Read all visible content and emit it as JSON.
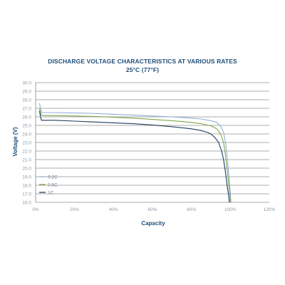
{
  "chart_data": {
    "type": "line",
    "title": "DISCHARGE VOLTAGE CHARACTERISTICS AT VARIOUS RATES",
    "subtitle": "25°C (77°F)",
    "xlabel": "Capacity",
    "ylabel": "Voltage (V)",
    "xlim": [
      0,
      120
    ],
    "ylim": [
      16,
      30
    ],
    "x_tick_labels": [
      "0%",
      "20%",
      "40%",
      "60%",
      "80%",
      "100%",
      "120%"
    ],
    "y_tick_labels": [
      "30.0",
      "29.0",
      "28.0",
      "27.0",
      "26.0",
      "25.0",
      "24.0",
      "23.0",
      "22.0",
      "21.0",
      "20.0",
      "19.0",
      "18.0",
      "17.0",
      "16.0"
    ],
    "grid": true,
    "legend_position": "lower-left",
    "series": [
      {
        "name": "0.2C",
        "color": "#8fb0d4",
        "x": [
          2,
          2.5,
          3,
          5,
          10,
          20,
          30,
          40,
          50,
          60,
          70,
          80,
          85,
          90,
          93,
          95,
          96.5,
          97.5,
          98.5,
          99.3,
          100,
          100.3
        ],
        "y": [
          27.6,
          27.0,
          26.55,
          26.5,
          26.5,
          26.45,
          26.4,
          26.3,
          26.2,
          26.1,
          26.0,
          25.85,
          25.75,
          25.55,
          25.35,
          24.9,
          24.2,
          23.0,
          21.0,
          19.0,
          17.0,
          16.0
        ]
      },
      {
        "name": "0.5C",
        "color": "#7ea64a",
        "x": [
          2,
          2.5,
          3,
          5,
          10,
          20,
          30,
          40,
          50,
          60,
          70,
          80,
          85,
          90,
          93,
          95,
          96.5,
          97.5,
          98.5,
          99.2,
          99.7,
          100
        ],
        "y": [
          27.0,
          26.5,
          26.2,
          26.15,
          26.15,
          26.1,
          26.05,
          25.95,
          25.85,
          25.7,
          25.55,
          25.35,
          25.2,
          24.95,
          24.6,
          24.0,
          23.0,
          21.5,
          19.5,
          18.0,
          17.0,
          16.0
        ]
      },
      {
        "name": "1C",
        "color": "#1f3c5e",
        "x": [
          2,
          2.5,
          3,
          5,
          10,
          20,
          30,
          40,
          50,
          60,
          70,
          80,
          85,
          88,
          90,
          92,
          94,
          95.5,
          96.5,
          97.5,
          98.3,
          99,
          99.5
        ],
        "y": [
          26.7,
          26.0,
          25.6,
          25.6,
          25.6,
          25.5,
          25.4,
          25.3,
          25.2,
          25.05,
          24.85,
          24.6,
          24.4,
          24.2,
          24.0,
          23.6,
          23.0,
          22.0,
          21.0,
          19.5,
          18.0,
          17.0,
          16.0
        ]
      }
    ]
  }
}
